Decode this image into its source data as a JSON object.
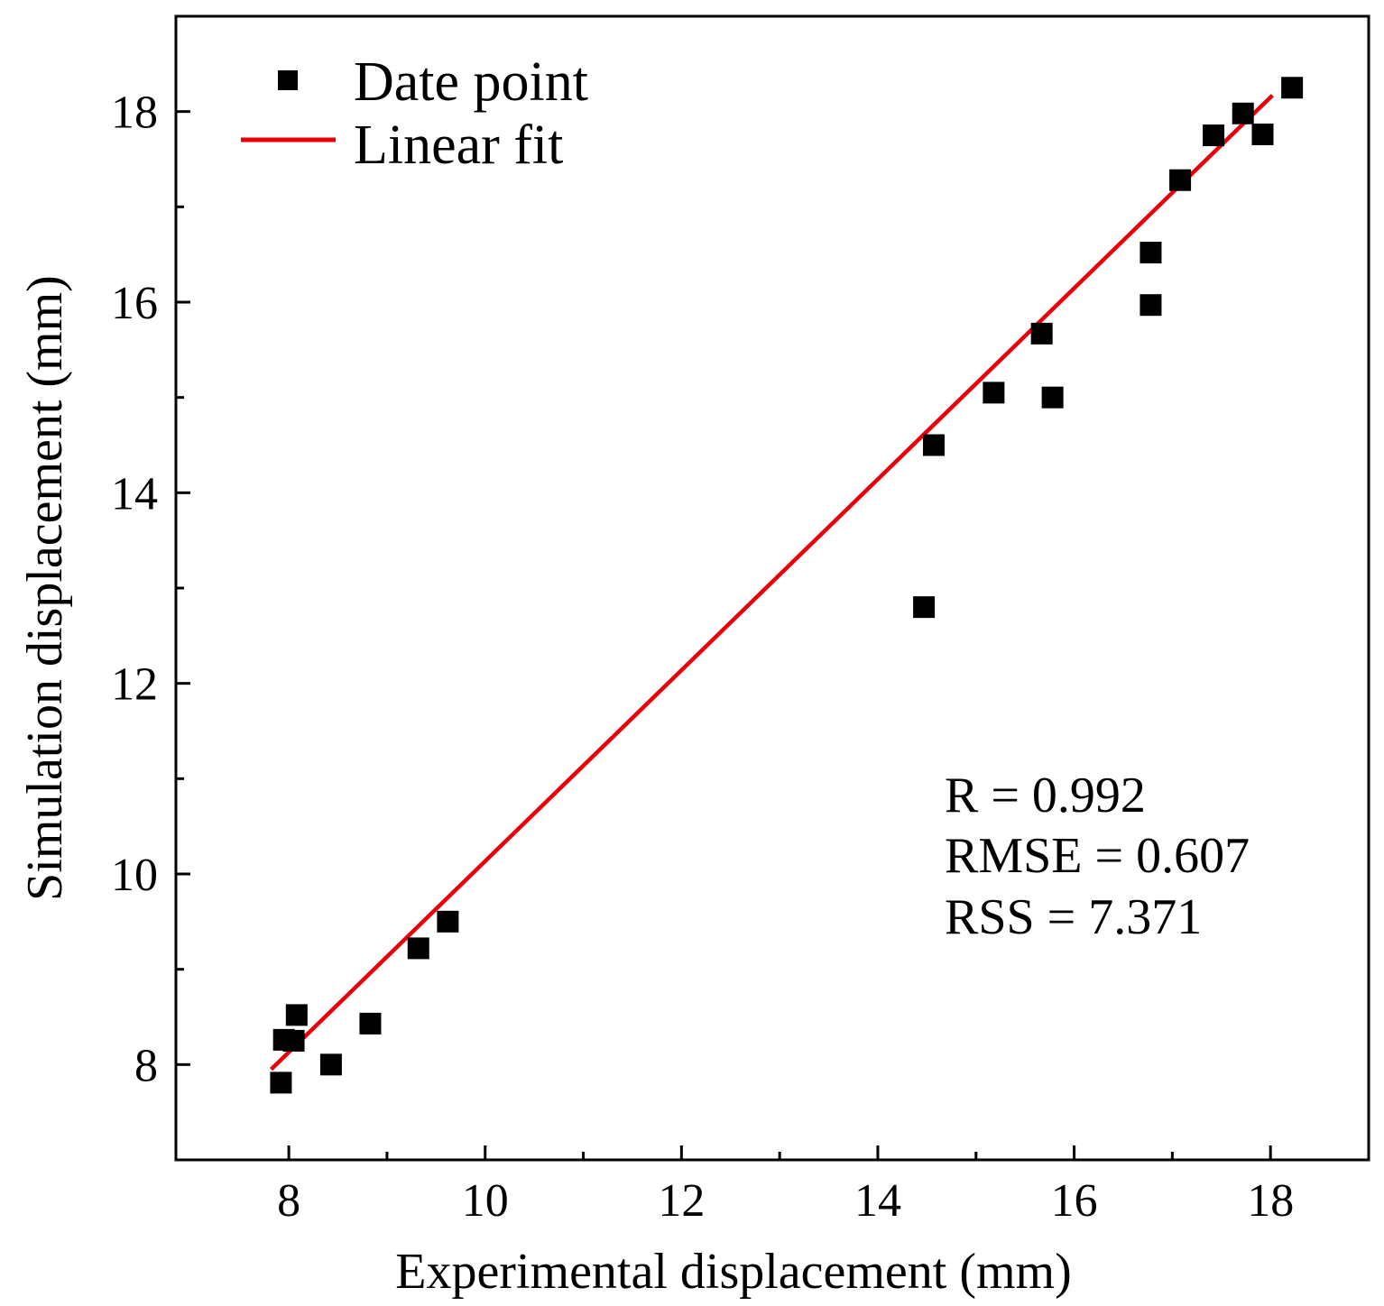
{
  "chart_data": {
    "type": "scatter",
    "xlabel": "Experimental displacement (mm)",
    "ylabel": "Simulation displacement (mm)",
    "xlim": [
      6.85,
      19.0
    ],
    "ylim": [
      7.0,
      19.0
    ],
    "x_ticks": [
      8,
      10,
      12,
      14,
      16,
      18
    ],
    "y_ticks": [
      8,
      10,
      12,
      14,
      16,
      18
    ],
    "x_minor_ticks": [
      9,
      11,
      13,
      15,
      17
    ],
    "y_minor_ticks": [
      9,
      11,
      13,
      15,
      17
    ],
    "grid": false,
    "legend_position": "top-left",
    "series": [
      {
        "name": "Date point",
        "kind": "scatter",
        "color": "#000000",
        "x": [
          7.92,
          7.95,
          8.05,
          8.08,
          8.43,
          8.83,
          9.32,
          9.62,
          14.47,
          14.57,
          15.18,
          15.67,
          15.78,
          16.78,
          16.78,
          17.08,
          17.42,
          17.72,
          17.92,
          18.22
        ],
        "y": [
          7.81,
          8.26,
          8.25,
          8.52,
          8.0,
          8.43,
          9.22,
          9.5,
          12.8,
          14.5,
          15.05,
          15.67,
          15.0,
          15.97,
          16.52,
          17.28,
          17.75,
          17.98,
          17.76,
          18.25
        ]
      },
      {
        "name": "Linear fit",
        "kind": "line",
        "color": "#e8000b",
        "x": [
          7.82,
          18.02
        ],
        "y": [
          7.95,
          18.17
        ]
      }
    ],
    "annotations": [
      "R = 0.992",
      "RMSE = 0.607",
      "RSS = 7.371"
    ]
  }
}
